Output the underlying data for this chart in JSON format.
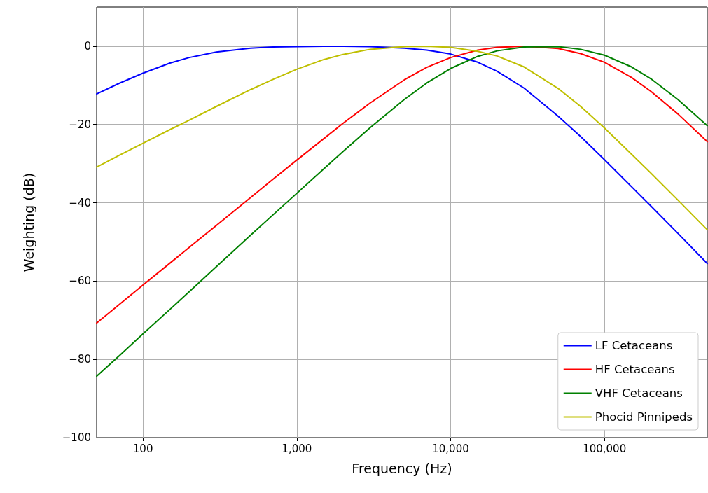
{
  "chart_data": {
    "type": "line",
    "xlabel": "Frequency (Hz)",
    "ylabel": "Weighting (dB)",
    "x": [
      50,
      70,
      100,
      150,
      200,
      300,
      500,
      700,
      1000,
      1500,
      2000,
      3000,
      5000,
      7000,
      10000,
      15000,
      20000,
      30000,
      50000,
      70000,
      100000,
      150000,
      200000,
      300000,
      466000
    ],
    "series": [
      {
        "name": "LF Cetaceans",
        "color": "#0000ff",
        "values": [
          -12.2,
          -9.5,
          -6.9,
          -4.3,
          -2.9,
          -1.5,
          -0.5,
          -0.2,
          -0.1,
          0.0,
          0.0,
          -0.1,
          -0.5,
          -1.0,
          -2.0,
          -4.1,
          -6.4,
          -10.7,
          -17.9,
          -23.1,
          -29.0,
          -35.9,
          -40.8,
          -47.8,
          -55.5
        ]
      },
      {
        "name": "HF Cetaceans",
        "color": "#ff0000",
        "values": [
          -70.7,
          -66.0,
          -61.0,
          -55.4,
          -51.4,
          -45.8,
          -38.7,
          -34.0,
          -29.1,
          -23.6,
          -19.7,
          -14.5,
          -8.6,
          -5.4,
          -2.9,
          -1.0,
          -0.3,
          0.0,
          -0.6,
          -1.9,
          -4.1,
          -8.0,
          -11.5,
          -17.3,
          -24.4
        ]
      },
      {
        "name": "VHF Cetaceans",
        "color": "#008000",
        "values": [
          -84.3,
          -79.1,
          -73.5,
          -67.2,
          -62.7,
          -56.3,
          -48.3,
          -43.1,
          -37.6,
          -31.3,
          -26.9,
          -20.8,
          -13.6,
          -9.4,
          -5.7,
          -2.6,
          -1.2,
          -0.2,
          -0.1,
          -0.8,
          -2.3,
          -5.3,
          -8.3,
          -13.6,
          -20.3
        ]
      },
      {
        "name": "Phocid Pinnipeds",
        "color": "#bfbf00",
        "values": [
          -30.9,
          -27.9,
          -24.8,
          -21.3,
          -18.9,
          -15.4,
          -11.1,
          -8.5,
          -5.9,
          -3.4,
          -2.1,
          -0.8,
          -0.1,
          0.0,
          -0.3,
          -1.3,
          -2.5,
          -5.3,
          -10.8,
          -15.4,
          -20.9,
          -27.6,
          -32.4,
          -39.3,
          -46.9
        ]
      }
    ],
    "xlim": [
      50,
      466000
    ],
    "xticks": [
      100,
      {
        "value": 1000,
        "label": "1,000"
      },
      {
        "value": 10000,
        "label": "10,000"
      },
      {
        "value": 100000,
        "label": "100,000"
      }
    ],
    "ylim": [
      -100,
      10
    ],
    "yticks": [
      {
        "value": -100,
        "label": "−100"
      },
      {
        "value": -80,
        "label": "−80"
      },
      {
        "value": -60,
        "label": "−60"
      },
      {
        "value": -40,
        "label": "−40"
      },
      {
        "value": -20,
        "label": "−20"
      },
      0
    ],
    "log": "x",
    "grid": true,
    "legend": "bottom right",
    "marker": "none",
    "line_style": "solid"
  }
}
